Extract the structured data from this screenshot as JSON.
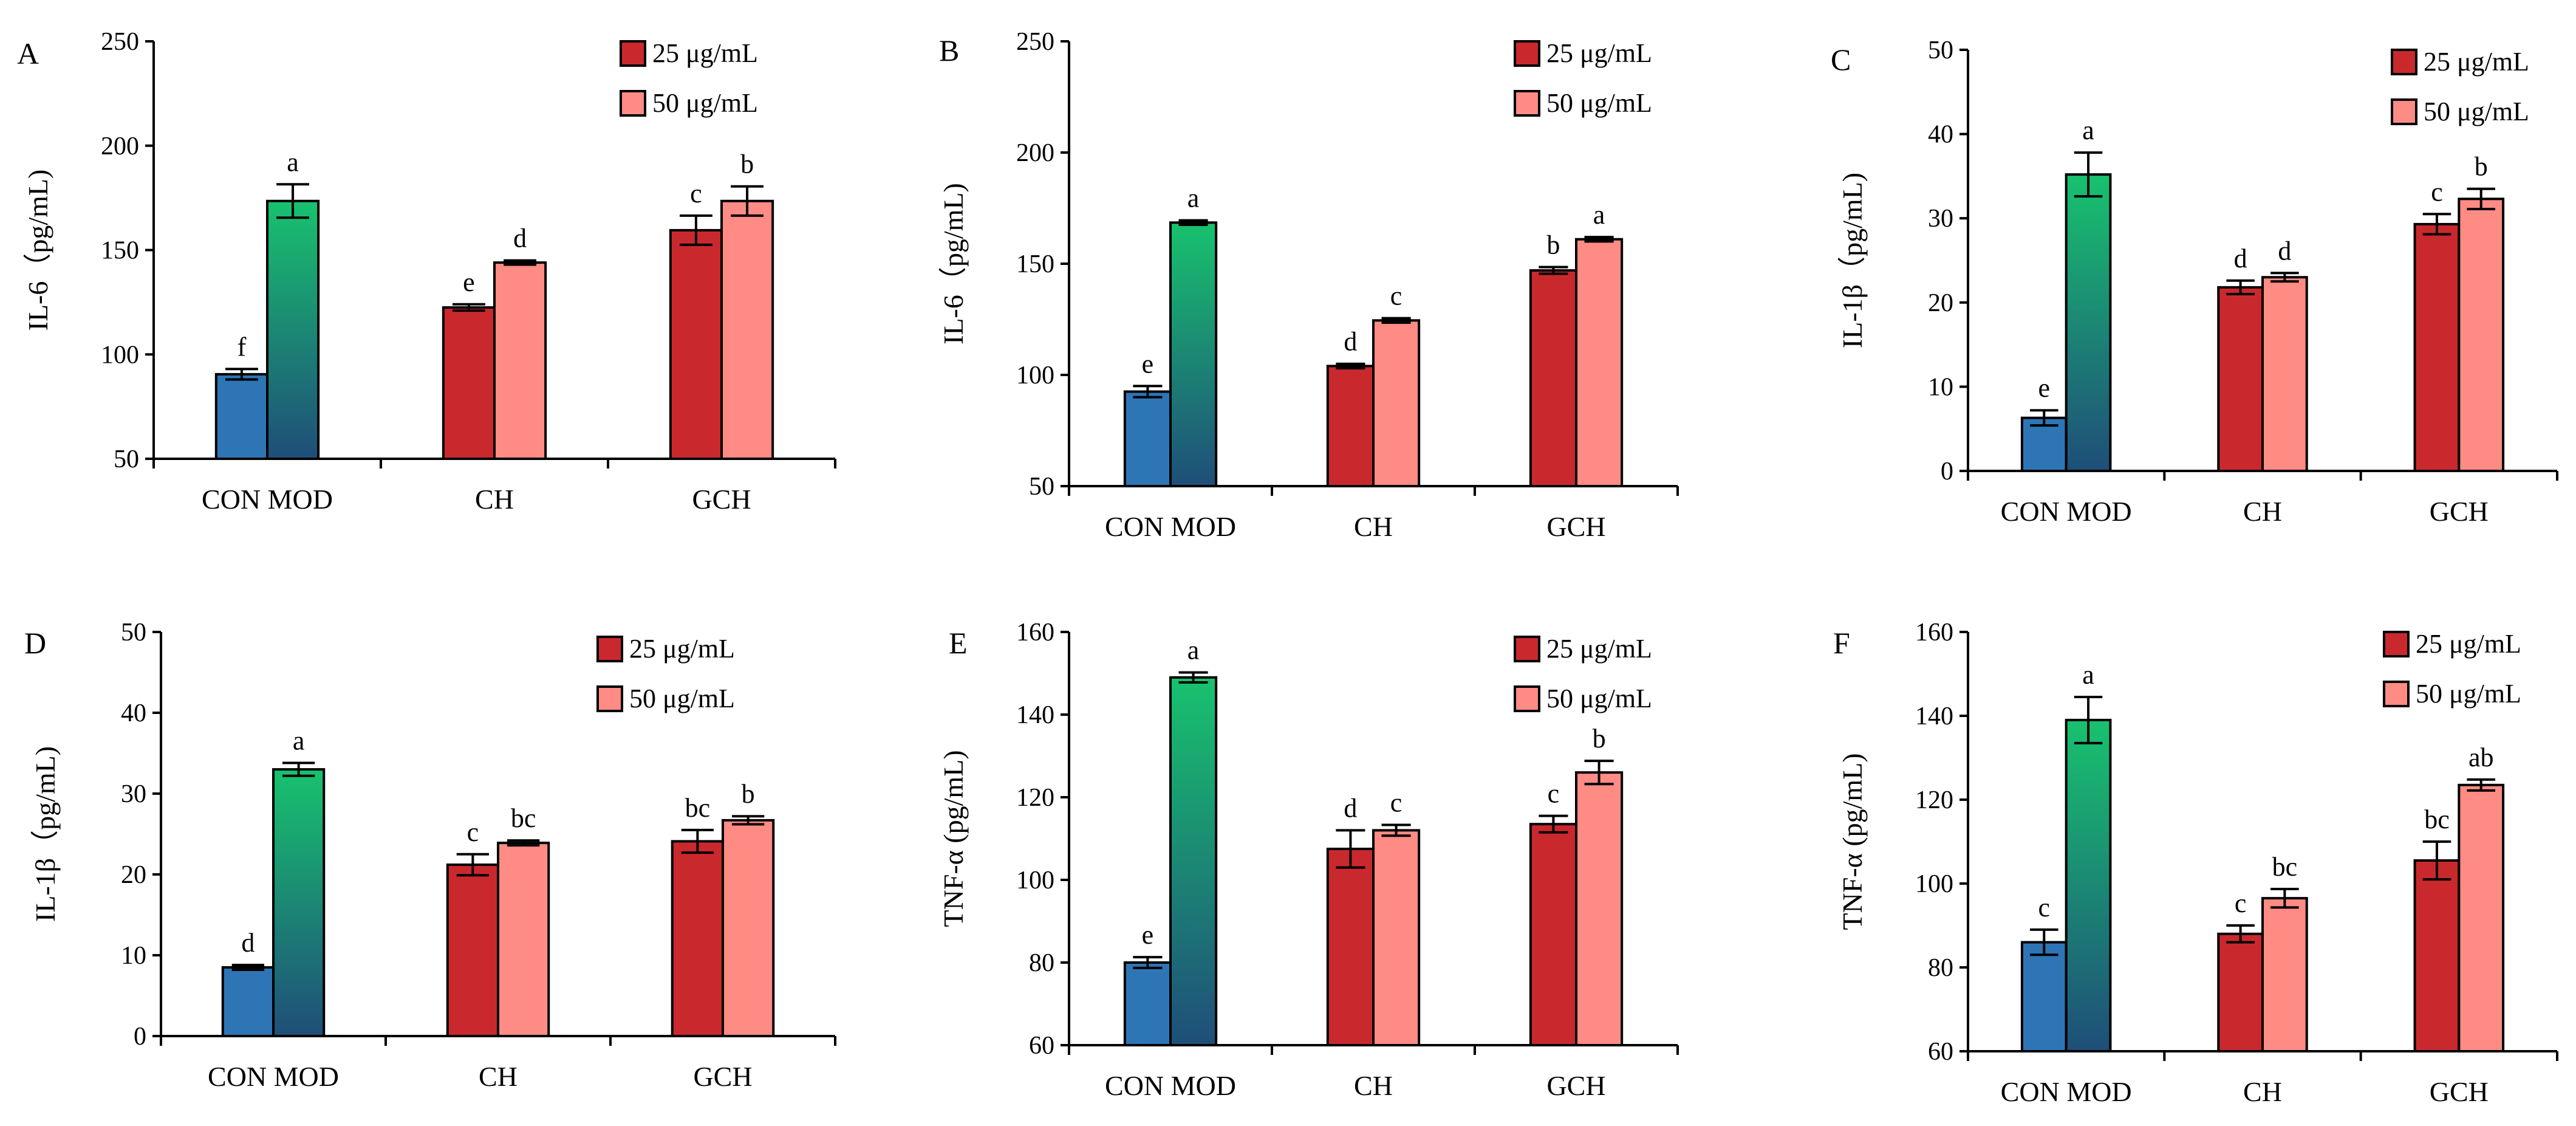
{
  "colors": {
    "con": "#2e75b6",
    "mod_top": "#18c26e",
    "mod_bottom": "#1f4e79",
    "dose25": "#c9292d",
    "dose50": "#ff8b85"
  },
  "chart_data": [
    {
      "panel": "A",
      "type": "bar",
      "ylabel": "IL-6（pg/mL)",
      "ylim": [
        50,
        250
      ],
      "yticks": [
        "50",
        "100",
        "150",
        "200",
        "250"
      ],
      "categories": [
        "CON MOD",
        "CH",
        "GCH"
      ],
      "legend": [
        "25 μg/mL",
        "50 μg/mL"
      ],
      "bars": [
        {
          "name": "CON",
          "value": 90.5,
          "err": 2.5,
          "sig": "f"
        },
        {
          "name": "MOD",
          "value": 173.5,
          "err": 8,
          "sig": "a"
        },
        {
          "name": "CH 25 μg/mL",
          "value": 122.5,
          "err": 1.5,
          "sig": "e"
        },
        {
          "name": "CH 50 μg/mL",
          "value": 144,
          "err": 1,
          "sig": "d"
        },
        {
          "name": "GCH 25 μg/mL",
          "value": 159.5,
          "err": 7,
          "sig": "c"
        },
        {
          "name": "GCH 50 μg/mL",
          "value": 173.5,
          "err": 7,
          "sig": "b"
        }
      ]
    },
    {
      "panel": "B",
      "type": "bar",
      "ylabel": "IL-6（pg/mL)",
      "ylim": [
        50,
        250
      ],
      "yticks": [
        "50",
        "100",
        "150",
        "200",
        "250"
      ],
      "categories": [
        "CON MOD",
        "CH",
        "GCH"
      ],
      "legend": [
        "25 μg/mL",
        "50 μg/mL"
      ],
      "bars": [
        {
          "name": "CON",
          "value": 92.5,
          "err": 2.5,
          "sig": "e"
        },
        {
          "name": "MOD",
          "value": 168.5,
          "err": 1,
          "sig": "a"
        },
        {
          "name": "CH 25 μg/mL",
          "value": 104,
          "err": 1,
          "sig": "d"
        },
        {
          "name": "CH 50 μg/mL",
          "value": 124.5,
          "err": 1,
          "sig": "c"
        },
        {
          "name": "GCH 25 μg/mL",
          "value": 147,
          "err": 1.5,
          "sig": "b"
        },
        {
          "name": "GCH 50 μg/mL",
          "value": 161,
          "err": 1,
          "sig": "a"
        }
      ]
    },
    {
      "panel": "C",
      "type": "bar",
      "ylabel": "IL-1β（pg/mL)",
      "ylim": [
        0,
        50
      ],
      "yticks": [
        "0",
        "10",
        "20",
        "30",
        "40",
        "50"
      ],
      "categories": [
        "CON MOD",
        "CH",
        "GCH"
      ],
      "legend": [
        "25 μg/mL",
        "50 μg/mL"
      ],
      "bars": [
        {
          "name": "CON",
          "value": 6.3,
          "err": 0.9,
          "sig": "e"
        },
        {
          "name": "MOD",
          "value": 35.2,
          "err": 2.6,
          "sig": "a"
        },
        {
          "name": "CH 25 μg/mL",
          "value": 21.8,
          "err": 0.8,
          "sig": "d"
        },
        {
          "name": "CH 50 μg/mL",
          "value": 23,
          "err": 0.5,
          "sig": "d"
        },
        {
          "name": "GCH 25 μg/mL",
          "value": 29.3,
          "err": 1.2,
          "sig": "c"
        },
        {
          "name": "GCH 50 μg/mL",
          "value": 32.3,
          "err": 1.2,
          "sig": "b"
        }
      ]
    },
    {
      "panel": "D",
      "type": "bar",
      "ylabel": "IL-1β（pg/mL)",
      "ylim": [
        0,
        50
      ],
      "yticks": [
        "0",
        "10",
        "20",
        "30",
        "40",
        "50"
      ],
      "categories": [
        "CON MOD",
        "CH",
        "GCH"
      ],
      "legend": [
        "25 μg/mL",
        "50 μg/mL"
      ],
      "bars": [
        {
          "name": "CON",
          "value": 8.5,
          "err": 0.3,
          "sig": "d"
        },
        {
          "name": "MOD",
          "value": 33,
          "err": 0.8,
          "sig": "a"
        },
        {
          "name": "CH 25 μg/mL",
          "value": 21.2,
          "err": 1.3,
          "sig": "c"
        },
        {
          "name": "CH 50 μg/mL",
          "value": 23.9,
          "err": 0.3,
          "sig": "bc"
        },
        {
          "name": "GCH 25 μg/mL",
          "value": 24.1,
          "err": 1.4,
          "sig": "bc"
        },
        {
          "name": "GCH 50 μg/mL",
          "value": 26.7,
          "err": 0.5,
          "sig": "b"
        }
      ]
    },
    {
      "panel": "E",
      "type": "bar",
      "ylabel": "TNF-α (pg/mL)",
      "ylim": [
        60,
        160
      ],
      "yticks": [
        "60",
        "80",
        "100",
        "120",
        "140",
        "160"
      ],
      "categories": [
        "CON MOD",
        "CH",
        "GCH"
      ],
      "legend": [
        "25 μg/mL",
        "50 μg/mL"
      ],
      "bars": [
        {
          "name": "CON",
          "value": 80,
          "err": 1.3,
          "sig": "e"
        },
        {
          "name": "MOD",
          "value": 149,
          "err": 1.2,
          "sig": "a"
        },
        {
          "name": "CH 25 μg/mL",
          "value": 107.5,
          "err": 4.5,
          "sig": "d"
        },
        {
          "name": "CH 50 μg/mL",
          "value": 112,
          "err": 1.3,
          "sig": "c"
        },
        {
          "name": "GCH 25 μg/mL",
          "value": 113.5,
          "err": 2,
          "sig": "c"
        },
        {
          "name": "GCH 50 μg/mL",
          "value": 126,
          "err": 2.8,
          "sig": "b"
        }
      ]
    },
    {
      "panel": "F",
      "type": "bar",
      "ylabel": "TNF-α (pg/mL)",
      "ylim": [
        60,
        160
      ],
      "yticks": [
        "60",
        "80",
        "100",
        "120",
        "140",
        "160"
      ],
      "categories": [
        "CON MOD",
        "CH",
        "GCH"
      ],
      "legend": [
        "25 μg/mL",
        "50 μg/mL"
      ],
      "bars": [
        {
          "name": "CON",
          "value": 86,
          "err": 3,
          "sig": "c"
        },
        {
          "name": "MOD",
          "value": 139,
          "err": 5.5,
          "sig": "a"
        },
        {
          "name": "CH 25 μg/mL",
          "value": 88,
          "err": 2,
          "sig": "c"
        },
        {
          "name": "CH 50 μg/mL",
          "value": 96.5,
          "err": 2.2,
          "sig": "bc"
        },
        {
          "name": "GCH 25 μg/mL",
          "value": 105.5,
          "err": 4.5,
          "sig": "bc"
        },
        {
          "name": "GCH 50 μg/mL",
          "value": 123.5,
          "err": 1.3,
          "sig": "ab"
        }
      ]
    }
  ]
}
